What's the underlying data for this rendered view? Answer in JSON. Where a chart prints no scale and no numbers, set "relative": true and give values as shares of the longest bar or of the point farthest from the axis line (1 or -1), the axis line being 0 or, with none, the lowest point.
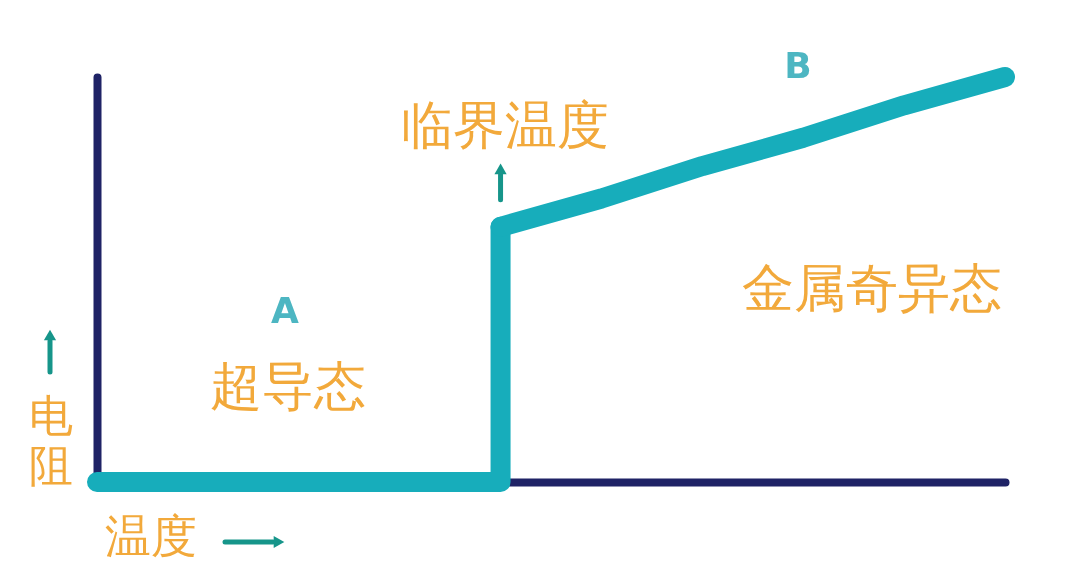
{
  "chart_data": {
    "type": "line",
    "relative": true,
    "xlabel": "温度",
    "ylabel": "电阻",
    "tick_labels": false,
    "line_style": "solid",
    "categories": [
      null,
      null,
      null,
      null,
      null,
      null,
      null,
      null,
      null,
      null
    ],
    "series": [
      {
        "type": "step",
        "color": "#17adbb",
        "values": [
          0,
          0,
          0,
          0,
          0.63,
          null,
          null,
          null,
          null,
          null
        ]
      },
      {
        "color": "#17adbb",
        "values": [
          null,
          null,
          null,
          null,
          0.63,
          0.7,
          0.78,
          0.85,
          0.93,
          1
        ]
      }
    ],
    "annotations": [
      "临界温度",
      "A",
      "超导态",
      "B",
      "金属奇异态"
    ]
  }
}
